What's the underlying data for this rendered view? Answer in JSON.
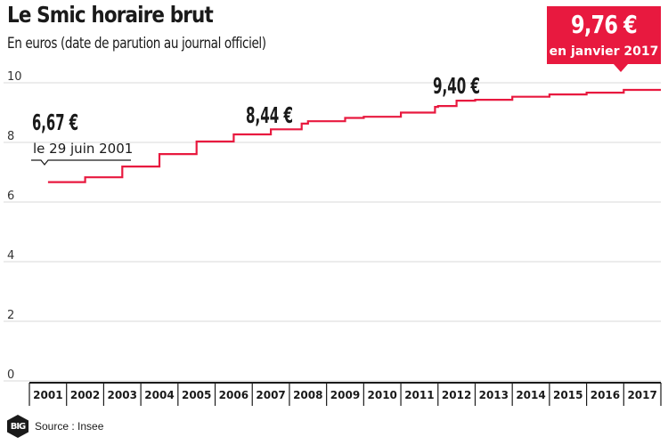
{
  "header": {
    "title": "Le Smic horaire brut",
    "subtitle": "En euros (date de parution au journal officiel)"
  },
  "source": "Source : Insee",
  "logo_text": "BIG",
  "annotations": {
    "first": {
      "value": "6,67 €",
      "date": "le 29 juin 2001"
    },
    "mid1": {
      "value": "8,44 €"
    },
    "mid2": {
      "value": "9,40 €"
    },
    "last": {
      "value": "9,76 €",
      "date": "en janvier 2017"
    }
  },
  "colors": {
    "line": "#e8193f",
    "callout": "#e8193f",
    "grid": "#d9d9d9",
    "text": "#1a1a1a"
  },
  "chart_data": {
    "type": "line",
    "step": true,
    "title": "Le Smic horaire brut",
    "subtitle": "En euros (date de parution au journal officiel)",
    "xlabel": "",
    "ylabel": "",
    "categories": [
      "2001",
      "2002",
      "2003",
      "2004",
      "2005",
      "2006",
      "2007",
      "2008",
      "2009",
      "2010",
      "2011",
      "2012",
      "2013",
      "2014",
      "2015",
      "2016",
      "2017"
    ],
    "yticks": [
      0,
      2,
      4,
      6,
      8,
      10
    ],
    "ylim": [
      0,
      10
    ],
    "grid": true,
    "series": [
      {
        "values": [
          {
            "x": 2001.5,
            "y": 6.67
          },
          {
            "x": 2002.5,
            "y": 6.83
          },
          {
            "x": 2003.5,
            "y": 7.19
          },
          {
            "x": 2004.5,
            "y": 7.61
          },
          {
            "x": 2005.5,
            "y": 8.03
          },
          {
            "x": 2006.5,
            "y": 8.27
          },
          {
            "x": 2007.5,
            "y": 8.44
          },
          {
            "x": 2008.33,
            "y": 8.63
          },
          {
            "x": 2008.5,
            "y": 8.71
          },
          {
            "x": 2009.5,
            "y": 8.82
          },
          {
            "x": 2010.0,
            "y": 8.86
          },
          {
            "x": 2011.0,
            "y": 9.0
          },
          {
            "x": 2011.92,
            "y": 9.19
          },
          {
            "x": 2012.0,
            "y": 9.22
          },
          {
            "x": 2012.5,
            "y": 9.4
          },
          {
            "x": 2013.0,
            "y": 9.43
          },
          {
            "x": 2014.0,
            "y": 9.53
          },
          {
            "x": 2015.0,
            "y": 9.61
          },
          {
            "x": 2016.0,
            "y": 9.67
          },
          {
            "x": 2017.0,
            "y": 9.76
          },
          {
            "x": 2018.0,
            "y": 9.76
          }
        ]
      }
    ]
  }
}
